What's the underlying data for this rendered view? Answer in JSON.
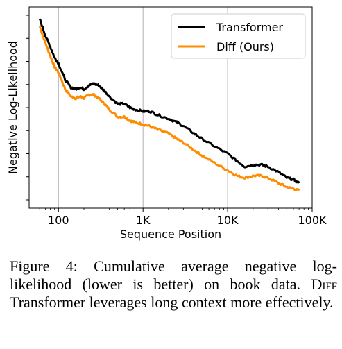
{
  "chart_data": {
    "type": "line",
    "title": "",
    "xlabel": "Sequence Position",
    "ylabel": "Negative Log-Likelihood",
    "xscale": "log",
    "xlim": [
      45,
      100000
    ],
    "ylim": [
      0,
      1
    ],
    "x_ticks": [
      100,
      1000,
      10000,
      100000
    ],
    "x_tick_labels": [
      "100",
      "1K",
      "10K",
      "100K"
    ],
    "grid": "vertical",
    "legend_position": "top-right",
    "series": [
      {
        "name": "Transformer",
        "color": "#000000",
        "x": [
          60,
          70,
          80,
          90,
          100,
          120,
          140,
          160,
          180,
          200,
          230,
          260,
          300,
          350,
          400,
          500,
          600,
          700,
          800,
          1000,
          1200,
          1500,
          2000,
          2500,
          3000,
          4000,
          5000,
          7000,
          10000,
          13000,
          16000,
          20000,
          25000,
          30000,
          40000,
          50000,
          60000,
          70000
        ],
        "y": [
          0.98,
          0.89,
          0.83,
          0.77,
          0.74,
          0.65,
          0.61,
          0.6,
          0.61,
          0.6,
          0.62,
          0.63,
          0.62,
          0.59,
          0.56,
          0.52,
          0.52,
          0.5,
          0.49,
          0.48,
          0.48,
          0.46,
          0.44,
          0.42,
          0.4,
          0.36,
          0.33,
          0.29,
          0.25,
          0.21,
          0.18,
          0.19,
          0.19,
          0.18,
          0.15,
          0.12,
          0.11,
          0.09
        ]
      },
      {
        "name": "Diff (Ours)",
        "color": "#ff8c00",
        "x": [
          60,
          70,
          80,
          90,
          100,
          120,
          140,
          160,
          180,
          200,
          230,
          260,
          300,
          350,
          400,
          500,
          600,
          700,
          800,
          1000,
          1200,
          1500,
          2000,
          2500,
          3000,
          4000,
          5000,
          7000,
          10000,
          13000,
          16000,
          20000,
          25000,
          30000,
          40000,
          50000,
          60000,
          70000
        ],
        "y": [
          0.94,
          0.85,
          0.78,
          0.72,
          0.69,
          0.6,
          0.56,
          0.55,
          0.56,
          0.55,
          0.57,
          0.57,
          0.55,
          0.52,
          0.49,
          0.45,
          0.45,
          0.43,
          0.42,
          0.41,
          0.4,
          0.38,
          0.36,
          0.33,
          0.31,
          0.27,
          0.24,
          0.2,
          0.16,
          0.13,
          0.12,
          0.13,
          0.13,
          0.12,
          0.09,
          0.07,
          0.06,
          0.05
        ]
      }
    ]
  },
  "caption": {
    "figure_label": "Figure 4:",
    "text_part1": "Cumulative average negative log-likelihood (lower is better) on book data.",
    "model_name": "Diff",
    "text_part2": "Transformer leverages long context more effectively."
  }
}
